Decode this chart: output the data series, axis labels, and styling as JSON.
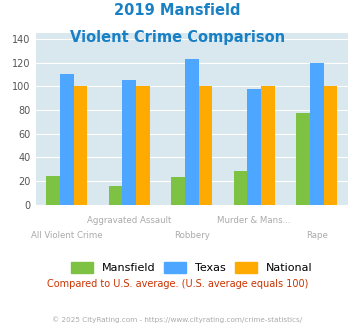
{
  "title_line1": "2019 Mansfield",
  "title_line2": "Violent Crime Comparison",
  "categories": [
    "All Violent Crime",
    "Aggravated Assault",
    "Robbery",
    "Murder & Mans...",
    "Rape"
  ],
  "top_labels": {
    "1": "Aggravated Assault",
    "3": "Murder & Mans..."
  },
  "bot_labels": {
    "0": "All Violent Crime",
    "2": "Robbery",
    "4": "Rape"
  },
  "mansfield": [
    24,
    16,
    23,
    28,
    77
  ],
  "texas": [
    110,
    105,
    123,
    98,
    120
  ],
  "national": [
    100,
    100,
    100,
    100,
    100
  ],
  "mansfield_color": "#7dc242",
  "texas_color": "#4da6ff",
  "national_color": "#ffaa00",
  "ylim": [
    0,
    145
  ],
  "yticks": [
    0,
    20,
    40,
    60,
    80,
    100,
    120,
    140
  ],
  "bg_color": "#d9e8ef",
  "title_color": "#1a80c4",
  "xlabel_color": "#aaaaaa",
  "footer_text": "Compared to U.S. average. (U.S. average equals 100)",
  "footer_color": "#cc3300",
  "copyright_text": "© 2025 CityRating.com - https://www.cityrating.com/crime-statistics/",
  "copyright_color": "#aaaaaa",
  "bar_width": 0.22
}
